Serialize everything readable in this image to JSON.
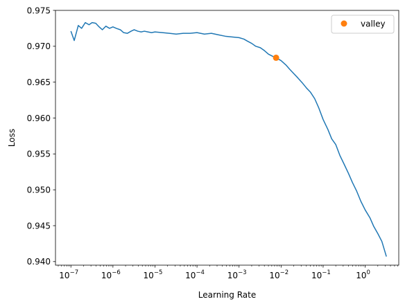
{
  "chart_data": {
    "type": "line",
    "title": "",
    "xlabel": "Learning Rate",
    "ylabel": "Loss",
    "x_scale": "log",
    "xlim": [
      4.3e-08,
      6.3
    ],
    "ylim": [
      0.9395,
      0.975
    ],
    "grid": false,
    "legend_position": "top-right",
    "x_ticks": [
      {
        "value": 1e-07,
        "base": "10",
        "exp": "−7"
      },
      {
        "value": 1e-06,
        "base": "10",
        "exp": "−6"
      },
      {
        "value": 1e-05,
        "base": "10",
        "exp": "−5"
      },
      {
        "value": 0.0001,
        "base": "10",
        "exp": "−4"
      },
      {
        "value": 0.001,
        "base": "10",
        "exp": "−3"
      },
      {
        "value": 0.01,
        "base": "10",
        "exp": "−2"
      },
      {
        "value": 0.1,
        "base": "10",
        "exp": "−1"
      },
      {
        "value": 1,
        "base": "10",
        "exp": "0"
      }
    ],
    "y_ticks": [
      {
        "value": 0.94,
        "label": "0.940"
      },
      {
        "value": 0.945,
        "label": "0.945"
      },
      {
        "value": 0.95,
        "label": "0.950"
      },
      {
        "value": 0.955,
        "label": "0.955"
      },
      {
        "value": 0.96,
        "label": "0.960"
      },
      {
        "value": 0.965,
        "label": "0.965"
      },
      {
        "value": 0.97,
        "label": "0.970"
      },
      {
        "value": 0.975,
        "label": "0.975"
      }
    ],
    "series": [
      {
        "color": "#1f77b4",
        "points": [
          [
            1e-07,
            0.9721
          ],
          [
            1.2e-07,
            0.9708
          ],
          [
            1.5e-07,
            0.9729
          ],
          [
            1.8e-07,
            0.9725
          ],
          [
            2.2e-07,
            0.9733
          ],
          [
            2.7e-07,
            0.973
          ],
          [
            3.2e-07,
            0.9733
          ],
          [
            3.9e-07,
            0.9732
          ],
          [
            4.7e-07,
            0.9727
          ],
          [
            5.6e-07,
            0.9723
          ],
          [
            6.8e-07,
            0.9728
          ],
          [
            8.3e-07,
            0.9725
          ],
          [
            1e-06,
            0.9727
          ],
          [
            1.2e-06,
            0.9725
          ],
          [
            1.5e-06,
            0.9723
          ],
          [
            1.8e-06,
            0.9719
          ],
          [
            2.2e-06,
            0.9718
          ],
          [
            2.7e-06,
            0.9721
          ],
          [
            3.2e-06,
            0.9723
          ],
          [
            3.9e-06,
            0.9721
          ],
          [
            4.7e-06,
            0.972
          ],
          [
            5.6e-06,
            0.9721
          ],
          [
            6.8e-06,
            0.972
          ],
          [
            8.3e-06,
            0.9719
          ],
          [
            1e-05,
            0.972
          ],
          [
            1.5e-05,
            0.9719
          ],
          [
            2.2e-05,
            0.9718
          ],
          [
            3.2e-05,
            0.9717
          ],
          [
            4.7e-05,
            0.9718
          ],
          [
            6.8e-05,
            0.9718
          ],
          [
            0.0001,
            0.9719
          ],
          [
            0.00015,
            0.9717
          ],
          [
            0.00022,
            0.9718
          ],
          [
            0.00032,
            0.9716
          ],
          [
            0.00047,
            0.9714
          ],
          [
            0.00068,
            0.9713
          ],
          [
            0.001,
            0.9712
          ],
          [
            0.0013,
            0.971
          ],
          [
            0.0016,
            0.9707
          ],
          [
            0.002,
            0.9704
          ],
          [
            0.0025,
            0.97
          ],
          [
            0.0032,
            0.9698
          ],
          [
            0.004,
            0.9694
          ],
          [
            0.005,
            0.9689
          ],
          [
            0.0063,
            0.9686
          ],
          [
            0.0076,
            0.9684
          ],
          [
            0.01,
            0.968
          ],
          [
            0.013,
            0.9674
          ],
          [
            0.016,
            0.9668
          ],
          [
            0.02,
            0.9662
          ],
          [
            0.025,
            0.9656
          ],
          [
            0.032,
            0.9649
          ],
          [
            0.04,
            0.9642
          ],
          [
            0.05,
            0.9636
          ],
          [
            0.063,
            0.9627
          ],
          [
            0.079,
            0.9614
          ],
          [
            0.1,
            0.9598
          ],
          [
            0.13,
            0.9584
          ],
          [
            0.16,
            0.9571
          ],
          [
            0.2,
            0.9563
          ],
          [
            0.25,
            0.9548
          ],
          [
            0.32,
            0.9535
          ],
          [
            0.4,
            0.9523
          ],
          [
            0.5,
            0.951
          ],
          [
            0.63,
            0.9498
          ],
          [
            0.79,
            0.9484
          ],
          [
            1.0,
            0.9472
          ],
          [
            1.3,
            0.9461
          ],
          [
            1.6,
            0.9449
          ],
          [
            2.0,
            0.9439
          ],
          [
            2.5,
            0.9428
          ],
          [
            3.2,
            0.9407
          ]
        ]
      },
      {
        "name": "valley",
        "color": "#ff7f0e",
        "marker": "circle",
        "points": [
          [
            0.0076,
            0.9684
          ]
        ]
      }
    ]
  }
}
